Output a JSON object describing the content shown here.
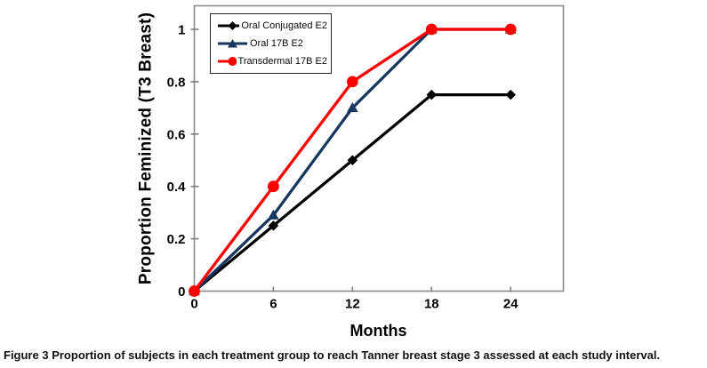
{
  "figure": {
    "caption_label": "Figure 3",
    "caption_text": "Proportion of subjects in each treatment group to reach Tanner breast stage 3 assessed at each study interval."
  },
  "chart_data": {
    "type": "line",
    "title": "",
    "xlabel": "Months",
    "ylabel": "Proportion Feminized (T3 Breast)",
    "x": [
      0,
      6,
      12,
      18,
      24
    ],
    "x_ticks": [
      "0",
      "6",
      "12",
      "18",
      "24"
    ],
    "y_ticks": [
      "0",
      "0.2",
      "0.4",
      "0.6",
      "0.8",
      "1"
    ],
    "xlim": [
      0,
      28
    ],
    "ylim": [
      0,
      1.09
    ],
    "grid": false,
    "legend_position": "inside-top-left",
    "series": [
      {
        "name": "Oral Conjugated E2",
        "color": "#000000",
        "marker": "diamond",
        "values": [
          0,
          0.25,
          0.5,
          0.75,
          0.75
        ]
      },
      {
        "name": "Oral 17B E2",
        "color": "#17375E",
        "marker": "triangle",
        "values": [
          0,
          0.29,
          0.7,
          1.0,
          1.0
        ]
      },
      {
        "name": "Transdermal 17B E2",
        "color": "#FE0000",
        "marker": "circle",
        "values": [
          0,
          0.4,
          0.8,
          1.0,
          1.0
        ]
      }
    ]
  },
  "colors": {
    "plot_border": "#8c8c8c",
    "tick": "#7f7f7f",
    "tick_label": "#000000",
    "background": "#ffffff"
  }
}
